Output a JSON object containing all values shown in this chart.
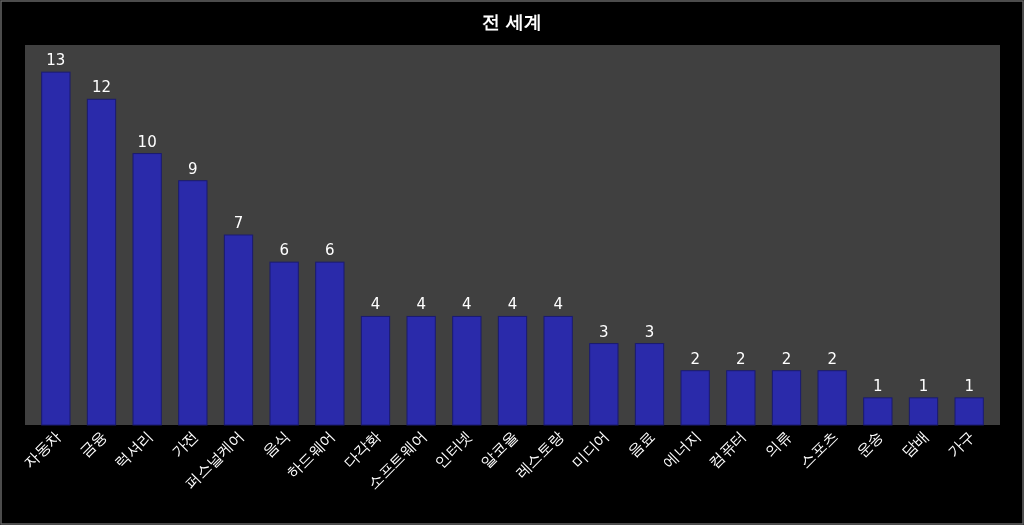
{
  "chart_data": {
    "type": "bar",
    "title": "전 세계",
    "categories": [
      "자동차",
      "금융",
      "럭셔리",
      "가전",
      "퍼스널케어",
      "음식",
      "하드웨어",
      "다각화",
      "소프트웨어",
      "인터넷",
      "알코올",
      "레스토랑",
      "미디어",
      "음료",
      "에너지",
      "컴퓨터",
      "의류",
      "스포츠",
      "운송",
      "담배",
      "가구"
    ],
    "values": [
      13,
      12,
      10,
      9,
      7,
      6,
      6,
      4,
      4,
      4,
      4,
      4,
      3,
      3,
      2,
      2,
      2,
      2,
      1,
      1,
      1
    ],
    "color": "#2a2aaa",
    "data_labels": true,
    "grid": false
  }
}
